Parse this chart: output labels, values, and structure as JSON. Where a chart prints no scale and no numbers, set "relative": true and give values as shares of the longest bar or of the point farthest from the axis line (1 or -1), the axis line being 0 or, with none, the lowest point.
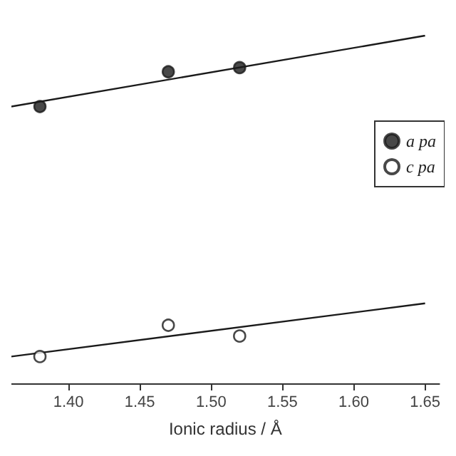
{
  "chart_data": {
    "type": "scatter",
    "xlabel": "Ionic radius / Å",
    "relative": true,
    "xlim": [
      1.36,
      1.66
    ],
    "xticks": [
      {
        "value": 1.4,
        "label": "1.40"
      },
      1.45,
      {
        "value": 1.5,
        "label": "1.50"
      },
      1.55,
      {
        "value": 1.6,
        "label": "1.60"
      },
      1.65
    ],
    "grid": false,
    "legend": "right",
    "series": [
      {
        "name": "a pa",
        "color": "#1a1a1a",
        "marker": "circle",
        "x": [
          1.38,
          1.47,
          1.52
        ],
        "values": [
          0.796,
          0.896,
          0.908
        ]
      },
      {
        "name": "c pa",
        "color": "#ffffff",
        "marker": "circle",
        "x": [
          1.38,
          1.47,
          1.52
        ],
        "values": [
          0.077,
          0.167,
          0.136
        ]
      },
      {
        "type": "line",
        "color": "#1a1a1a",
        "marker": "none",
        "x": [
          1.36,
          1.65
        ],
        "values": [
          0.796,
          1.0
        ]
      },
      {
        "type": "line",
        "color": "#1a1a1a",
        "marker": "none",
        "x": [
          1.36,
          1.65
        ],
        "values": [
          0.077,
          0.23
        ]
      }
    ]
  }
}
